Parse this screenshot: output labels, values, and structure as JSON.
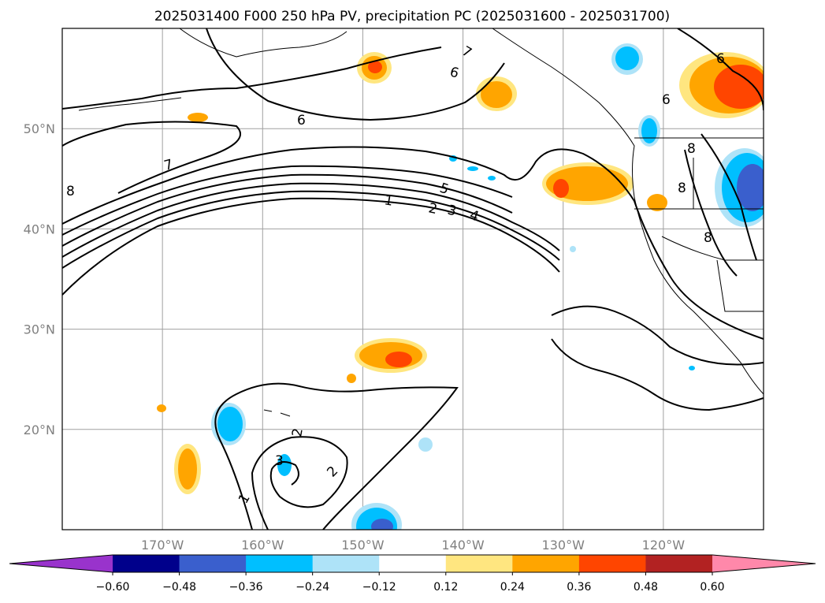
{
  "chart_data": {
    "type": "map-contour",
    "title": "2025031400 F000 250 hPa PV, precipitation PC (2025031600 - 2025031700)",
    "x_ticks": [
      {
        "lon": -170,
        "label": "170°W"
      },
      {
        "lon": -160,
        "label": "160°W"
      },
      {
        "lon": -150,
        "label": "150°W"
      },
      {
        "lon": -140,
        "label": "140°W"
      },
      {
        "lon": -130,
        "label": "130°W"
      },
      {
        "lon": -120,
        "label": "120°W"
      }
    ],
    "y_ticks": [
      {
        "lat": 20,
        "label": "20°N"
      },
      {
        "lat": 30,
        "label": "30°N"
      },
      {
        "lat": 40,
        "label": "40°N"
      },
      {
        "lat": 50,
        "label": "50°N"
      }
    ],
    "lon_range": [
      -180,
      -110
    ],
    "lat_range": [
      10,
      60
    ],
    "grid": true,
    "contour_labels": [
      "1",
      "2",
      "3",
      "4",
      "5",
      "6",
      "6",
      "7",
      "7",
      "8",
      "8",
      "8",
      "8",
      "6",
      "6",
      "2",
      "3",
      "2",
      "1"
    ],
    "colorbar": {
      "orientation": "horizontal",
      "extend": "both",
      "levels": [
        -0.6,
        -0.48,
        -0.36,
        -0.24,
        -0.12,
        0.12,
        0.24,
        0.36,
        0.48,
        0.6
      ],
      "tick_labels": [
        "−0.60",
        "−0.48",
        "−0.36",
        "−0.24",
        "−0.12",
        "0.12",
        "0.24",
        "0.36",
        "0.48",
        "0.60"
      ],
      "colors": [
        "#9933cc",
        "#00008b",
        "#3a5fcd",
        "#00bfff",
        "#aee3f8",
        "#ffffff",
        "#ffe680",
        "#ffa500",
        "#ff4500",
        "#b22222",
        "#ff88aa"
      ]
    }
  }
}
